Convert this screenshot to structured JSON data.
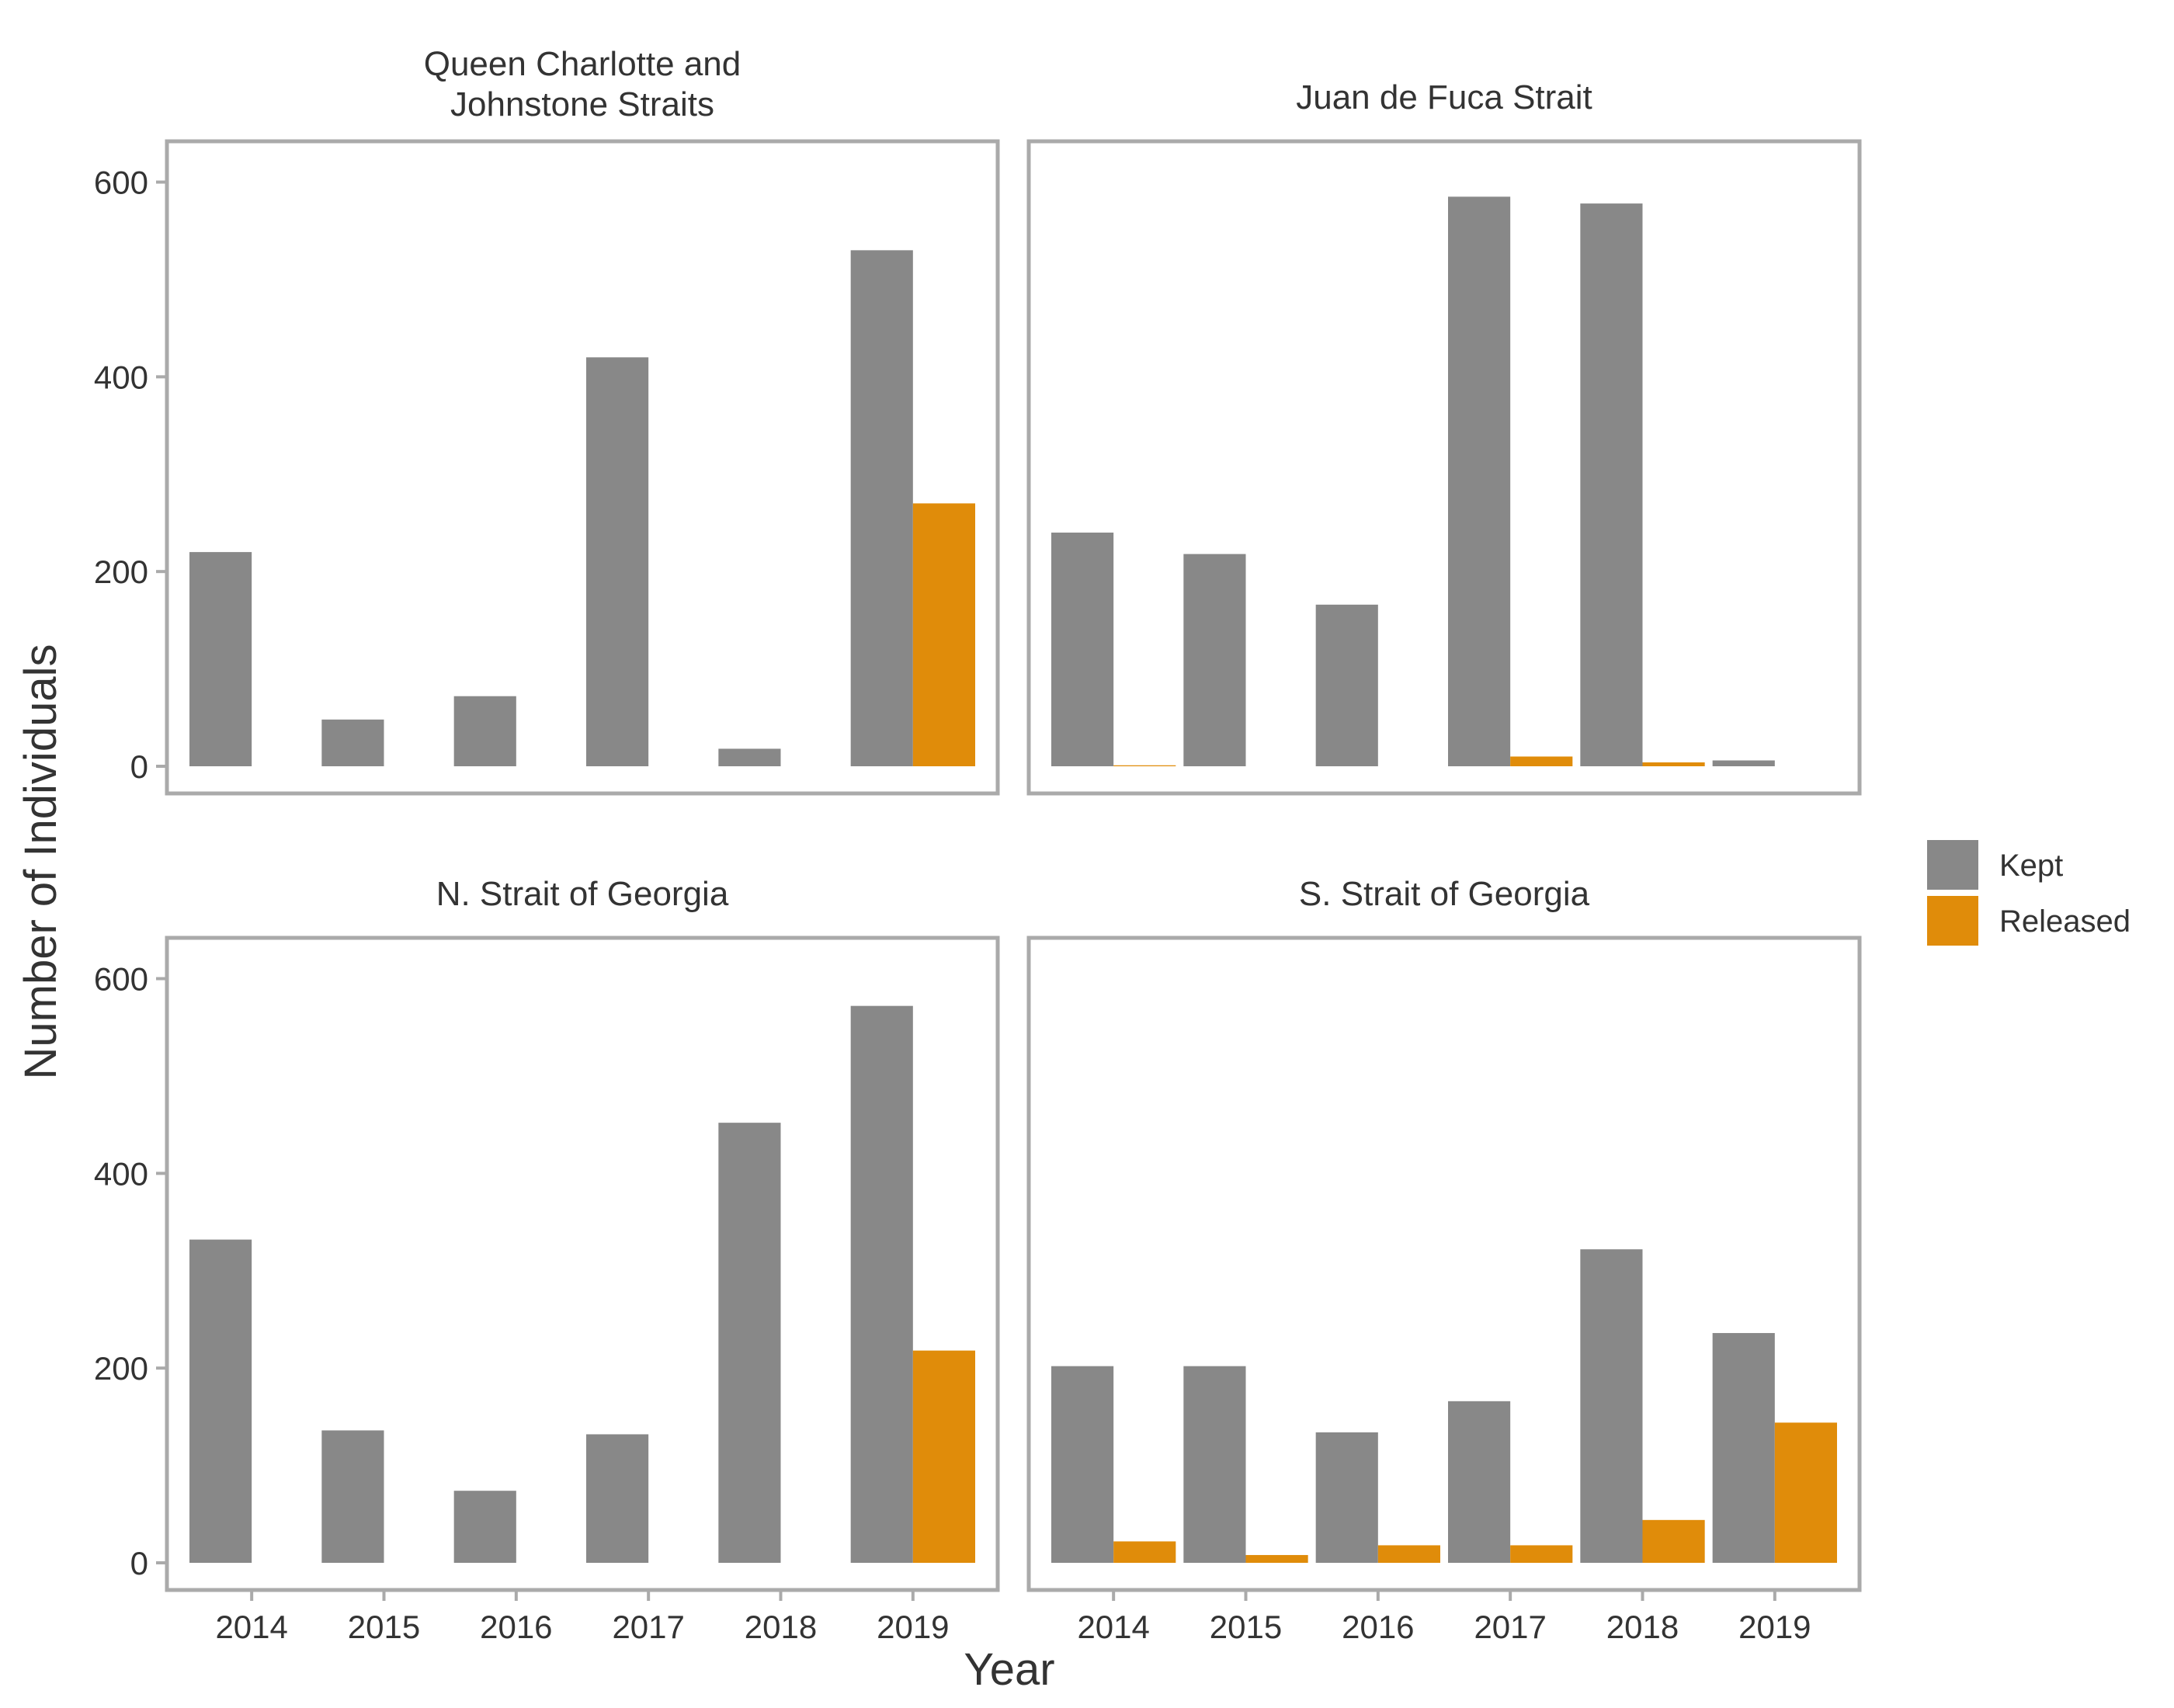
{
  "chart_data": {
    "type": "bar",
    "layout": "facet-grid-2x2",
    "xlabel": "Year",
    "ylabel": "Number of Individuals",
    "ylim": [
      0,
      610
    ],
    "yticks": [
      0,
      200,
      400,
      600
    ],
    "grid": false,
    "legend_position": "right",
    "categories": [
      "2014",
      "2015",
      "2016",
      "2017",
      "2018",
      "2019"
    ],
    "colors": {
      "Kept": "#888888",
      "Released": "#e08c0a"
    },
    "legend": [
      "Kept",
      "Released"
    ],
    "panels": [
      {
        "title_lines": [
          "Queen Charlotte and",
          "Johnstone Straits"
        ],
        "series": [
          {
            "name": "Kept",
            "values": [
              220,
              48,
              72,
              420,
              18,
              530
            ]
          },
          {
            "name": "Released",
            "values": [
              0,
              0,
              0,
              0,
              0,
              270
            ]
          }
        ]
      },
      {
        "title_lines": [
          "Juan de Fuca Strait"
        ],
        "series": [
          {
            "name": "Kept",
            "values": [
              240,
              218,
              166,
              585,
              578,
              6
            ]
          },
          {
            "name": "Released",
            "values": [
              1,
              0,
              0,
              10,
              4,
              0
            ]
          }
        ]
      },
      {
        "title_lines": [
          "N. Strait of Georgia"
        ],
        "series": [
          {
            "name": "Kept",
            "values": [
              332,
              136,
              74,
              132,
              452,
              572
            ]
          },
          {
            "name": "Released",
            "values": [
              0,
              0,
              0,
              0,
              0,
              218
            ]
          }
        ]
      },
      {
        "title_lines": [
          "S. Strait of Georgia"
        ],
        "series": [
          {
            "name": "Kept",
            "values": [
              202,
              202,
              134,
              166,
              322,
              236
            ]
          },
          {
            "name": "Released",
            "values": [
              22,
              8,
              18,
              18,
              44,
              144
            ]
          }
        ]
      }
    ]
  }
}
